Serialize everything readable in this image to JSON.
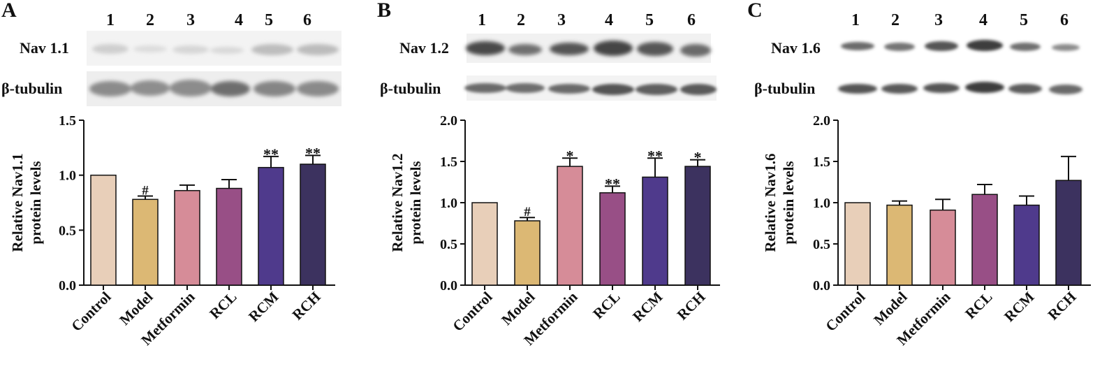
{
  "panels": [
    {
      "letter": "A",
      "protein": "Nav 1.1",
      "loading": "β-tubulin"
    },
    {
      "letter": "B",
      "protein": "Nav 1.2",
      "loading": "β-tubulin"
    },
    {
      "letter": "C",
      "protein": "Nav 1.6",
      "loading": "β-tubulin"
    }
  ],
  "lane_numbers": [
    "1",
    "2",
    "3",
    "4",
    "5",
    "6"
  ],
  "colors": [
    "#e8cfb9",
    "#dcb874",
    "#d68c98",
    "#984f86",
    "#4f3a8c",
    "#3c325f"
  ],
  "chart_data": [
    {
      "type": "bar",
      "categories": [
        "Control",
        "Model",
        "Metformin",
        "RCL",
        "RCM",
        "RCH"
      ],
      "values": [
        1.0,
        0.78,
        0.86,
        0.88,
        1.07,
        1.1
      ],
      "errors": [
        0.0,
        0.03,
        0.05,
        0.08,
        0.1,
        0.08
      ],
      "annotations": [
        "",
        "#",
        "",
        "",
        "**",
        "**"
      ],
      "ylabel": [
        "Relative Nav1.1",
        "protein levels"
      ],
      "ylim": [
        0,
        1.5
      ],
      "yticks": [
        "0.0",
        "0.5",
        "1.0",
        "1.5"
      ],
      "xlabel": ""
    },
    {
      "type": "bar",
      "categories": [
        "Control",
        "Model",
        "Metformin",
        "RCL",
        "RCM",
        "RCH"
      ],
      "values": [
        1.0,
        0.78,
        1.44,
        1.12,
        1.31,
        1.44
      ],
      "errors": [
        0.0,
        0.04,
        0.1,
        0.08,
        0.23,
        0.08
      ],
      "annotations": [
        "",
        "#",
        "*",
        "**",
        "**",
        "*"
      ],
      "ylabel": [
        "Relative Nav1.2",
        "protein levels"
      ],
      "ylim": [
        0,
        2.0
      ],
      "yticks": [
        "0.0",
        "0.5",
        "1.0",
        "1.5",
        "2.0"
      ],
      "xlabel": ""
    },
    {
      "type": "bar",
      "categories": [
        "Control",
        "Model",
        "Metformin",
        "RCL",
        "RCM",
        "RCH"
      ],
      "values": [
        1.0,
        0.97,
        0.91,
        1.1,
        0.97,
        1.27
      ],
      "errors": [
        0.0,
        0.05,
        0.13,
        0.12,
        0.11,
        0.29
      ],
      "annotations": [
        "",
        "",
        "",
        "",
        "",
        ""
      ],
      "ylabel": [
        "Relative Nav1.6",
        "protein levels"
      ],
      "ylim": [
        0,
        2.0
      ],
      "yticks": [
        "0.0",
        "0.5",
        "1.0",
        "1.5",
        "2.0"
      ],
      "xlabel": ""
    }
  ]
}
